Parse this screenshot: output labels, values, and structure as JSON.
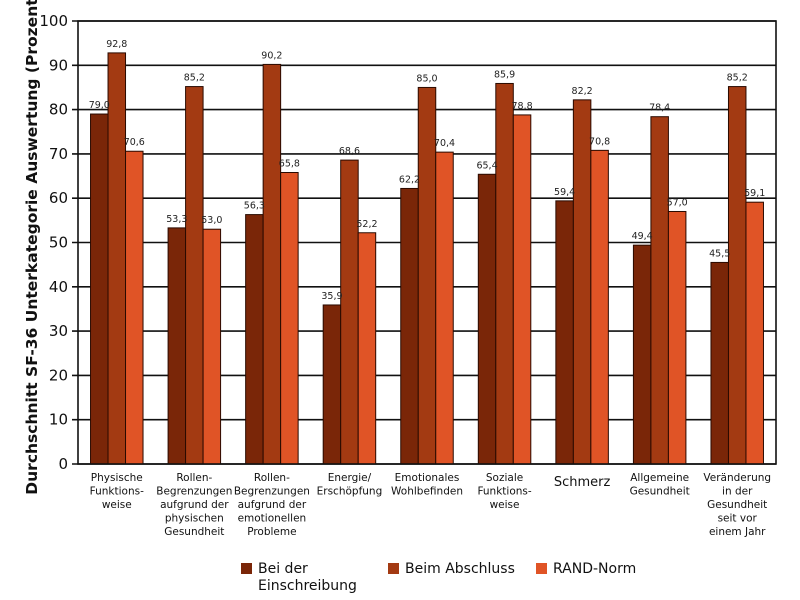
{
  "chart_data": {
    "type": "bar",
    "title": "",
    "xlabel": "",
    "ylabel": "Durchschnitt SF-36 Unterkategorie Auswertung (Prozent)",
    "ylim": [
      0,
      100
    ],
    "yticks": [
      0,
      10,
      20,
      30,
      40,
      50,
      60,
      70,
      80,
      90,
      100
    ],
    "grid": true,
    "legend_position": "bottom",
    "categories": [
      [
        "Physische",
        "Funktions-",
        "weise"
      ],
      [
        "Rollen-",
        "Begrenzungen",
        "aufgrund der",
        "physischen",
        "Gesundheit"
      ],
      [
        "Rollen-",
        "Begrenzungen",
        "aufgrund der",
        "emotionellen",
        "Probleme"
      ],
      [
        "Energie/",
        "Erschöpfung"
      ],
      [
        "Emotionales",
        "Wohlbefinden"
      ],
      [
        "Soziale",
        "Funktions-",
        "weise"
      ],
      [
        "Schmerz"
      ],
      [
        "Allgemeine",
        "Gesundheit"
      ],
      [
        "Veränderung",
        "in der",
        "Gesundheit",
        "seit vor",
        "einem Jahr"
      ]
    ],
    "series": [
      {
        "name": "Bei der Einschreibung",
        "legend_lines": [
          "Bei der",
          "Einschreibung"
        ],
        "color": "#7a2608",
        "values": [
          79.0,
          53.3,
          56.3,
          35.9,
          62.2,
          65.4,
          59.4,
          49.4,
          45.5
        ],
        "labels": [
          "79,0",
          "53,3",
          "56,3",
          "35,9",
          "62,2",
          "65,4",
          "59,4",
          "49,4",
          "45,5"
        ]
      },
      {
        "name": "Beim Abschluss",
        "legend_lines": [
          "Beim Abschluss"
        ],
        "color": "#a33a12",
        "values": [
          92.8,
          85.2,
          90.2,
          68.6,
          85.0,
          85.9,
          82.2,
          78.4,
          85.2
        ],
        "labels": [
          "92,8",
          "85,2",
          "90,2",
          "68,6",
          "85,0",
          "85,9",
          "82,2",
          "78,4",
          "85,2"
        ]
      },
      {
        "name": "RAND-Norm",
        "legend_lines": [
          "RAND-Norm"
        ],
        "color": "#e05426",
        "values": [
          70.6,
          53.0,
          65.8,
          52.2,
          70.4,
          78.8,
          70.8,
          57.0,
          59.1
        ],
        "labels": [
          "70,6",
          "53,0",
          "65,8",
          "52,2",
          "70,4",
          "78,8",
          "70,8",
          "57,0",
          "59,1"
        ]
      }
    ]
  }
}
